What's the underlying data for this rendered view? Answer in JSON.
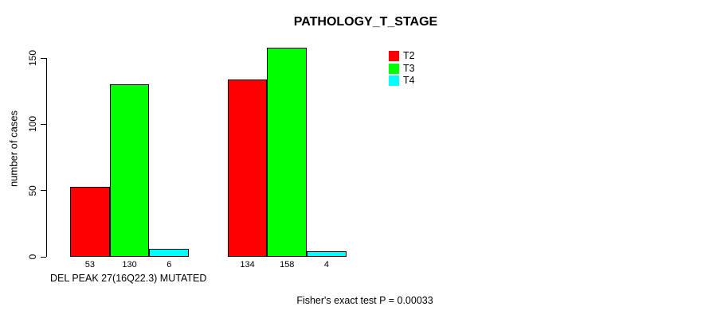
{
  "chart_data": {
    "type": "bar",
    "title": "PATHOLOGY_T_STAGE",
    "ylabel": "number of cases",
    "group_labels": [
      "DEL PEAK 27(16Q22.3) MUTATED",
      ""
    ],
    "series": [
      {
        "name": "T2",
        "color": "#ff0000",
        "values": [
          53,
          134
        ]
      },
      {
        "name": "T3",
        "color": "#00ff00",
        "values": [
          130,
          158
        ]
      },
      {
        "name": "T4",
        "color": "#00ffff",
        "values": [
          6,
          4
        ]
      }
    ],
    "value_labels_shown": true,
    "yticks": [
      0,
      50,
      100,
      150
    ],
    "ylim": [
      0,
      150
    ],
    "grid": false,
    "legend_position": "top-right",
    "axis_color": "#000000",
    "bar_border_color": "#000000",
    "footnote": "Fisher's exact test P = 0.00033"
  }
}
